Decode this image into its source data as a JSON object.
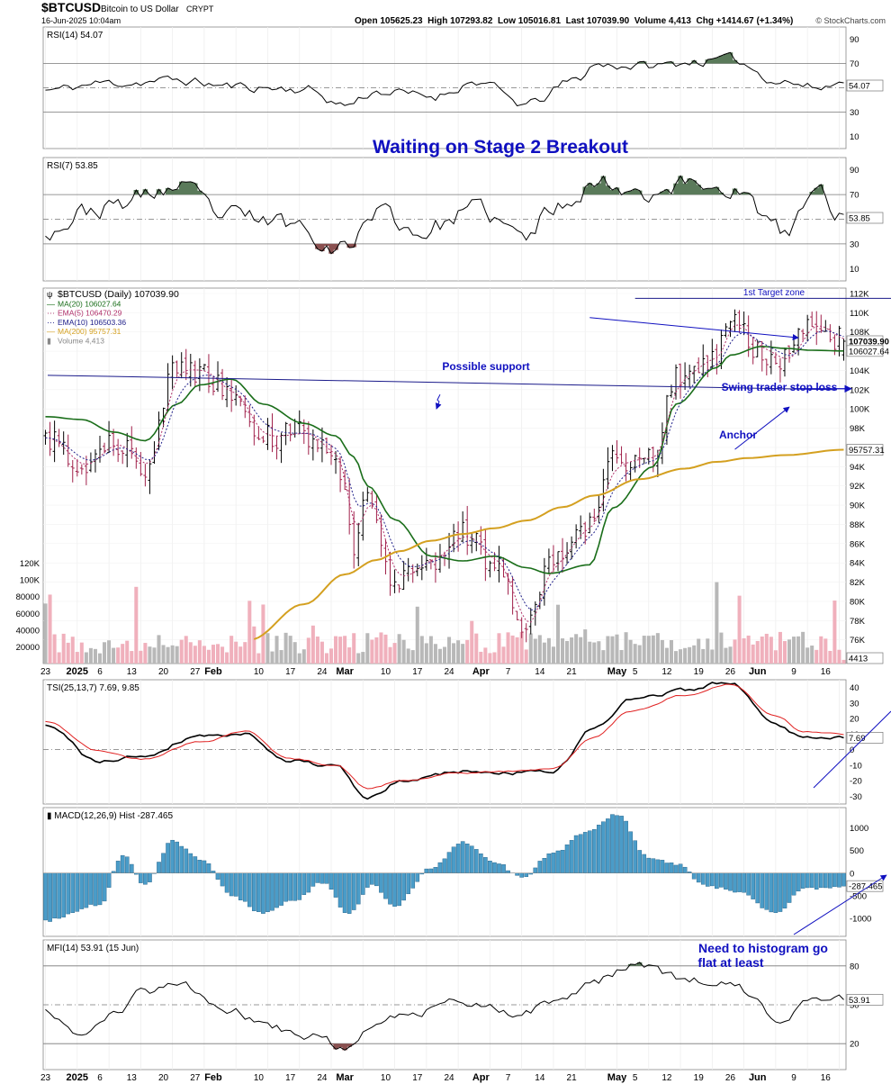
{
  "header": {
    "symbol": "$BTCUSD",
    "name": "Bitcoin to US Dollar",
    "exchange": "CRYPT",
    "datetime": "16-Jun-2025 10:04am",
    "ohlc": "Open 105625.23  High 107293.82  Low 105016.81  Last 107039.90  Volume 4,413  Chg +1414.67 (+1.34%)",
    "watermark": "© StockCharts.com"
  },
  "annotations": {
    "headline": "Waiting on Stage 2 Breakout",
    "target": "1st Target zone",
    "support": "Possible support",
    "stop": "Swing trader stop loss",
    "anchor": "Anchor",
    "histogram_note_1": "Need to histogram go",
    "histogram_note_2": "flat at least"
  },
  "colors": {
    "up": "#000000",
    "down": "#a0204a",
    "ma20": "#1a6e1a",
    "ema5": "#b0306a",
    "ema10": "#20208a",
    "ma200": "#d4a020",
    "vol_up": "#b8b8b8",
    "vol_down": "#f0b0bc",
    "hist": "#4a9cc8",
    "tsi": "#000000",
    "tsi_signal": "#e02020",
    "annotation": "#1010c0",
    "overbought_fill": "#5a7a5a",
    "oversold_fill": "#8a5050"
  },
  "legend": {
    "price": "$BTCUSD (Daily) 107039.90",
    "ma20": "MA(20) 106027.64",
    "ema5": "EMA(5) 106470.29",
    "ema10": "EMA(10) 106503.36",
    "ma200": "MA(200) 95757.31",
    "volume": "Volume 4,413"
  },
  "value_tags": {
    "rsi14": "54.07",
    "rsi7": "53.85",
    "price": "107039.90",
    "ma20": "106027.64",
    "ma200": "95757.31",
    "volume": "4413",
    "tsi": "7.69",
    "macd": "-287.465",
    "mfi": "53.91"
  },
  "x_axis": {
    "labels": [
      {
        "i": 0,
        "t": "23"
      },
      {
        "i": 7,
        "t": "2025"
      },
      {
        "i": 12,
        "t": "6"
      },
      {
        "i": 19,
        "t": "13"
      },
      {
        "i": 26,
        "t": "20"
      },
      {
        "i": 33,
        "t": "27"
      },
      {
        "i": 37,
        "t": "Feb"
      },
      {
        "i": 47,
        "t": "10"
      },
      {
        "i": 54,
        "t": "17"
      },
      {
        "i": 61,
        "t": "24"
      },
      {
        "i": 66,
        "t": "Mar"
      },
      {
        "i": 75,
        "t": "10"
      },
      {
        "i": 82,
        "t": "17"
      },
      {
        "i": 89,
        "t": "24"
      },
      {
        "i": 96,
        "t": "Apr"
      },
      {
        "i": 102,
        "t": "7"
      },
      {
        "i": 109,
        "t": "14"
      },
      {
        "i": 116,
        "t": "21"
      },
      {
        "i": 126,
        "t": "May"
      },
      {
        "i": 130,
        "t": "5"
      },
      {
        "i": 137,
        "t": "12"
      },
      {
        "i": 144,
        "t": "19"
      },
      {
        "i": 151,
        "t": "26"
      },
      {
        "i": 157,
        "t": "Jun"
      },
      {
        "i": 165,
        "t": "9"
      },
      {
        "i": 172,
        "t": "16"
      }
    ],
    "bold_labels": [
      "2025",
      "Feb",
      "Mar",
      "Apr",
      "May",
      "Jun"
    ]
  },
  "chart_data": [
    {
      "type": "line",
      "name": "RSI(14) 54.07",
      "ylim": [
        0,
        100
      ],
      "yticks": [
        10,
        30,
        50,
        70,
        90
      ],
      "guides": [
        30,
        50,
        70
      ],
      "x": [
        "2024-12-22",
        "2025-01-05",
        "2025-01-20",
        "2025-02-02",
        "2025-02-17",
        "2025-02-26",
        "2025-03-05",
        "2025-03-17",
        "2025-03-27",
        "2025-04-07",
        "2025-04-18",
        "2025-04-22",
        "2025-05-05",
        "2025-05-15",
        "2025-05-22",
        "2025-06-02",
        "2025-06-10",
        "2025-06-16"
      ],
      "values": [
        48,
        54,
        56,
        51,
        49,
        36,
        47,
        43,
        55,
        36,
        56,
        69,
        68,
        72,
        73,
        56,
        50,
        54.07
      ]
    },
    {
      "type": "line",
      "name": "RSI(7) 53.85",
      "ylim": [
        0,
        100
      ],
      "yticks": [
        10,
        30,
        50,
        70,
        90
      ],
      "guides": [
        30,
        50,
        70
      ],
      "x": [
        "2024-12-22",
        "2025-01-02",
        "2025-01-20",
        "2025-01-31",
        "2025-02-14",
        "2025-02-26",
        "2025-03-05",
        "2025-03-14",
        "2025-03-27",
        "2025-04-07",
        "2025-04-13",
        "2025-04-22",
        "2025-05-05",
        "2025-05-12",
        "2025-05-22",
        "2025-06-03",
        "2025-06-10",
        "2025-06-16"
      ],
      "values": [
        42,
        58,
        75,
        52,
        47,
        27,
        58,
        40,
        57,
        35,
        60,
        80,
        73,
        79,
        76,
        38,
        72,
        53.85
      ]
    },
    {
      "type": "candlestick",
      "name": "$BTCUSD (Daily) 107039.90",
      "ylim": [
        74000,
        112000
      ],
      "yticks": [
        76000,
        78000,
        80000,
        82000,
        84000,
        86000,
        88000,
        90000,
        92000,
        94000,
        96000,
        98000,
        100000,
        102000,
        104000,
        106000,
        108000,
        110000,
        112000
      ],
      "x": [
        "2024-12-22",
        "2024-12-30",
        "2025-01-06",
        "2025-01-13",
        "2025-01-20",
        "2025-01-25",
        "2025-02-01",
        "2025-02-08",
        "2025-02-17",
        "2025-02-24",
        "2025-02-28",
        "2025-03-03",
        "2025-03-09",
        "2025-03-17",
        "2025-03-24",
        "2025-03-31",
        "2025-04-07",
        "2025-04-12",
        "2025-04-21",
        "2025-04-26",
        "2025-05-05",
        "2025-05-10",
        "2025-05-19",
        "2025-05-22",
        "2025-05-29",
        "2025-06-03",
        "2025-06-09",
        "2025-06-16"
      ],
      "close": [
        97000,
        94000,
        96500,
        94000,
        104500,
        104000,
        101500,
        97000,
        97500,
        95000,
        86000,
        91000,
        82000,
        84500,
        87000,
        84000,
        77000,
        84000,
        88000,
        94500,
        95000,
        103500,
        105500,
        109500,
        106000,
        105000,
        109000,
        107039.9
      ],
      "ma20": [
        99200,
        98900,
        97600,
        96700,
        100500,
        102500,
        103100,
        100500,
        98500,
        97200,
        95000,
        92000,
        88500,
        84700,
        84200,
        84700,
        83500,
        82900,
        83800,
        89700,
        94000,
        100500,
        104300,
        105600,
        106500,
        106300,
        106100,
        106027.64
      ],
      "ma200": [
        null,
        76000,
        79700,
        82800,
        84300,
        85200,
        86300,
        87000,
        87600,
        88400,
        89800,
        91000,
        92700,
        93800,
        94500,
        94900,
        95200,
        95757.31
      ],
      "ma200_x": [
        "2025-01-14",
        "2025-02-05",
        "2025-02-17",
        "2025-02-26",
        "2025-03-05",
        "2025-03-10",
        "2025-03-17",
        "2025-03-24",
        "2025-03-31",
        "2025-04-07",
        "2025-04-15",
        "2025-04-22",
        "2025-05-02",
        "2025-05-12",
        "2025-05-19",
        "2025-05-26",
        "2025-06-03",
        "2025-06-16"
      ],
      "volume_ticks": [
        "20000",
        "40000",
        "60000",
        "80000",
        "100K",
        "120K"
      ],
      "volume_ylim": [
        0,
        140000
      ],
      "target_zone": 111500,
      "support_line": [
        103500,
        102000
      ]
    },
    {
      "type": "line",
      "name": "TSI(25,13,7) 7.69, 9.85",
      "ylim": [
        -35,
        45
      ],
      "yticks": [
        -30,
        -20,
        -10,
        0,
        10,
        20,
        30,
        40
      ],
      "guides": [
        0
      ],
      "x": [
        "2024-12-22",
        "2025-01-03",
        "2025-01-12",
        "2025-01-25",
        "2025-02-04",
        "2025-02-14",
        "2025-02-24",
        "2025-03-03",
        "2025-03-11",
        "2025-03-24",
        "2025-04-03",
        "2025-04-13",
        "2025-04-22",
        "2025-04-30",
        "2025-05-12",
        "2025-05-22",
        "2025-06-01",
        "2025-06-07",
        "2025-06-16"
      ],
      "series": [
        {
          "name": "TSI",
          "values": [
            15,
            -8,
            -4,
            9,
            10,
            -7,
            -11,
            -31,
            -20,
            -14,
            -15,
            -14,
            14,
            32,
            38,
            44,
            16,
            9,
            7.69
          ]
        },
        {
          "name": "Signal",
          "values": [
            18,
            -1,
            -6,
            5,
            12,
            -6,
            -10,
            -25,
            -20,
            -15,
            -14,
            -12,
            8,
            25,
            35,
            42,
            22,
            12,
            9.85
          ]
        }
      ]
    },
    {
      "type": "bar",
      "name": "MACD(12,26,9) Hist -287.465",
      "ylim": [
        -1400,
        1450
      ],
      "yticks": [
        -1000,
        -500,
        0,
        500,
        1000
      ],
      "x": [
        "2024-12-22",
        "2025-01-03",
        "2025-01-08",
        "2025-01-13",
        "2025-01-19",
        "2025-01-26",
        "2025-02-01",
        "2025-02-08",
        "2025-02-15",
        "2025-02-21",
        "2025-02-27",
        "2025-03-04",
        "2025-03-09",
        "2025-03-17",
        "2025-03-24",
        "2025-03-31",
        "2025-04-06",
        "2025-04-13",
        "2025-04-20",
        "2025-04-27",
        "2025-05-04",
        "2025-05-10",
        "2025-05-17",
        "2025-05-24",
        "2025-06-01",
        "2025-06-07",
        "2025-06-16"
      ],
      "values": [
        -1050,
        -700,
        400,
        -250,
        700,
        250,
        -500,
        -900,
        -600,
        -200,
        -900,
        -250,
        -750,
        100,
        700,
        250,
        -100,
        450,
        900,
        1300,
        350,
        200,
        -300,
        -400,
        -900,
        -350,
        -287.465
      ]
    },
    {
      "type": "line",
      "name": "MFI(14) 53.91 (15 Jun)",
      "ylim": [
        0,
        100
      ],
      "yticks": [
        20,
        50,
        80
      ],
      "guides": [
        20,
        50,
        80
      ],
      "x": [
        "2024-12-22",
        "2024-12-30",
        "2025-01-06",
        "2025-01-13",
        "2025-01-20",
        "2025-02-01",
        "2025-02-10",
        "2025-02-20",
        "2025-02-26",
        "2025-03-05",
        "2025-03-13",
        "2025-03-24",
        "2025-04-06",
        "2025-04-14",
        "2025-04-22",
        "2025-05-01",
        "2025-05-11",
        "2025-05-22",
        "2025-06-02",
        "2025-06-09",
        "2025-06-16"
      ],
      "values": [
        45,
        27,
        43,
        60,
        68,
        45,
        31,
        26,
        15,
        38,
        44,
        52,
        44,
        53,
        69,
        80,
        70,
        66,
        40,
        55,
        53.91
      ]
    }
  ]
}
